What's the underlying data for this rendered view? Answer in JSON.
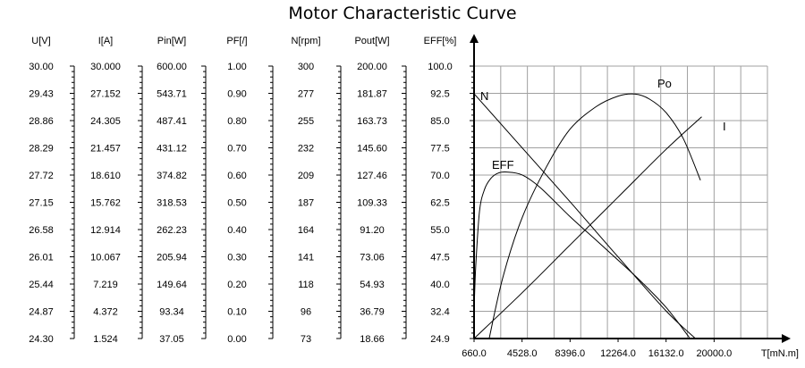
{
  "chart_data": {
    "type": "line",
    "title": "Motor Characteristic Curve",
    "x_axis": {
      "unit_label": "T[mN.m]",
      "ticks": [
        "660.0",
        "4528.0",
        "8396.0",
        "12264.0",
        "16132.0",
        "20000.0"
      ],
      "range": [
        660.0,
        20000.0
      ]
    },
    "scales": [
      {
        "label": "U[V]",
        "ticks": [
          "30.00",
          "29.43",
          "28.86",
          "28.29",
          "27.72",
          "27.15",
          "26.58",
          "26.01",
          "25.44",
          "24.87",
          "24.30"
        ]
      },
      {
        "label": "I[A]",
        "ticks": [
          "30.000",
          "27.152",
          "24.305",
          "21.457",
          "18.610",
          "15.762",
          "12.914",
          "10.067",
          "7.219",
          "4.372",
          "1.524"
        ]
      },
      {
        "label": "Pin[W]",
        "ticks": [
          "600.00",
          "543.71",
          "487.41",
          "431.12",
          "374.82",
          "318.53",
          "262.23",
          "205.94",
          "149.64",
          "93.34",
          "37.05"
        ]
      },
      {
        "label": "PF[/]",
        "ticks": [
          "1.00",
          "0.90",
          "0.80",
          "0.70",
          "0.60",
          "0.50",
          "0.40",
          "0.30",
          "0.20",
          "0.10",
          "0.00"
        ]
      },
      {
        "label": "N[rpm]",
        "ticks": [
          "300",
          "277",
          "255",
          "232",
          "209",
          "187",
          "164",
          "141",
          "118",
          "96",
          "73"
        ]
      },
      {
        "label": "Pout[W]",
        "ticks": [
          "200.00",
          "181.87",
          "163.73",
          "145.60",
          "127.46",
          "109.33",
          "91.20",
          "73.06",
          "54.93",
          "36.79",
          "18.66"
        ]
      },
      {
        "label": "EFF[%]",
        "ticks": [
          "100.0",
          "92.5",
          "85.0",
          "77.5",
          "70.0",
          "62.5",
          "55.0",
          "47.5",
          "40.0",
          "32.4",
          "24.9"
        ]
      }
    ],
    "series": [
      {
        "name": "N",
        "scale": "N[rpm]",
        "x": [
          660,
          4528,
          8396,
          12264,
          16132,
          18500
        ],
        "y": [
          277,
          232,
          187,
          141,
          96,
          73
        ]
      },
      {
        "name": "I",
        "scale": "I[A]",
        "x": [
          660,
          4528,
          8396,
          12264,
          16132,
          19000
        ],
        "y": [
          1.524,
          6.3,
          11.3,
          16.3,
          21.3,
          24.7
        ]
      },
      {
        "name": "Po",
        "scale": "Pout[W]",
        "x": [
          1880,
          3000,
          4528,
          6500,
          8396,
          10500,
          12264,
          13600,
          14800,
          16132,
          17500,
          18900
        ],
        "y": [
          18.66,
          60,
          99,
          133,
          158,
          173,
          180,
          181.4,
          178,
          169,
          152,
          124
        ]
      },
      {
        "name": "EFF",
        "scale": "EFF[%]",
        "x": [
          660,
          800,
          1100,
          1500,
          2000,
          2600,
          3300,
          4528,
          6000,
          8396,
          10500,
          12264,
          14000,
          16132,
          18000
        ],
        "y": [
          32.4,
          45,
          60,
          66,
          69,
          70.5,
          70.8,
          70,
          66.5,
          58.5,
          52,
          46.5,
          41,
          33.5,
          25.2
        ]
      }
    ],
    "grid": true
  }
}
